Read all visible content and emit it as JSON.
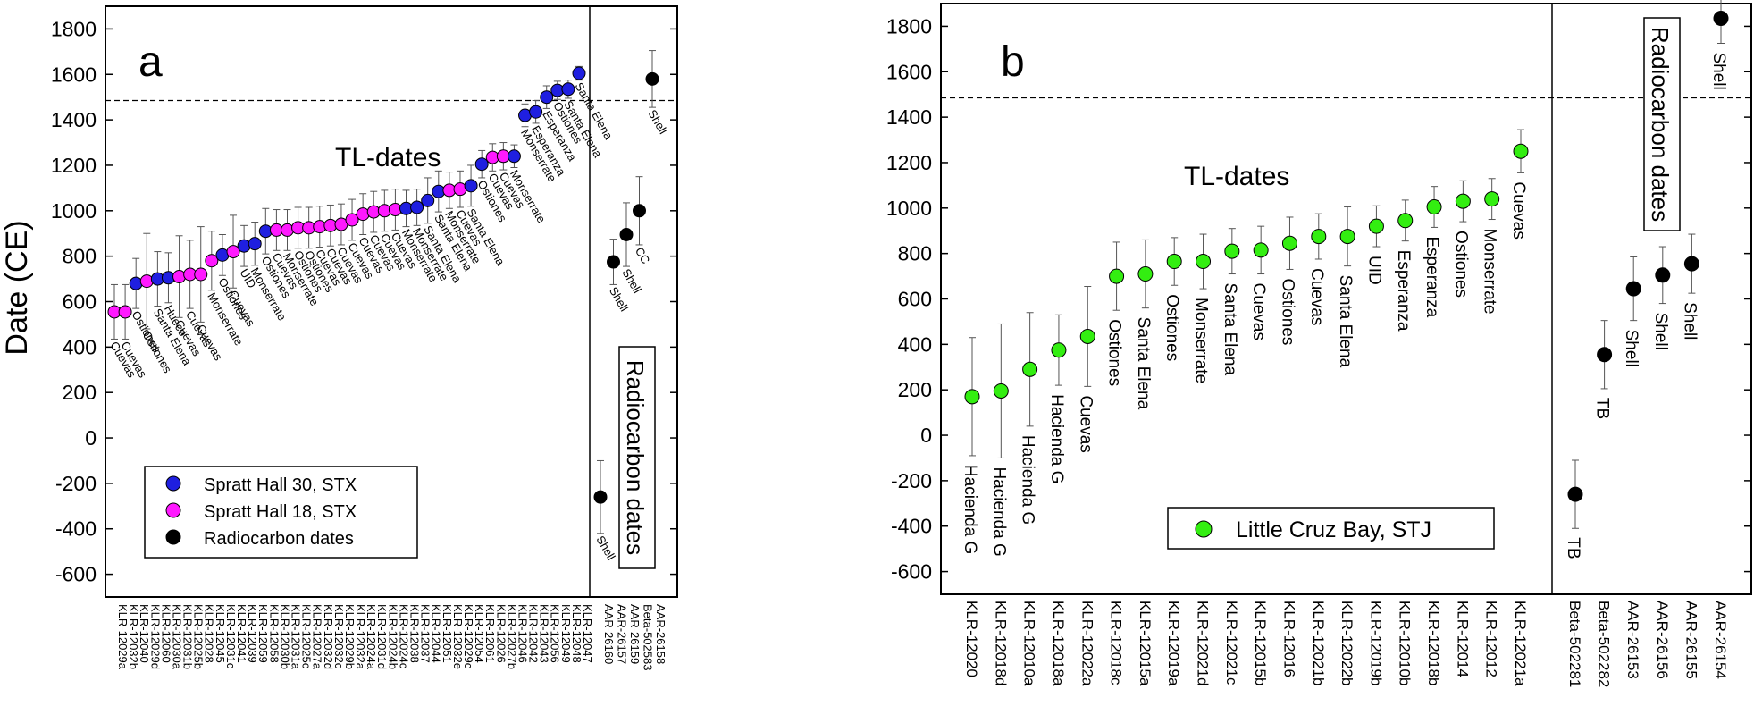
{
  "figure": {
    "ylabel": "Date (CE)",
    "markers": {
      "spratt30": "#1f1fe0",
      "spratt18": "#ff19ff",
      "radiocarbon": "#000000",
      "lcb": "#33ee11"
    },
    "dashed_line_value": 1485
  },
  "chart_data": [
    {
      "type": "scatter",
      "panel_label": "a",
      "title": "",
      "xlabel": "",
      "ylabel": "Date (CE)",
      "ylim": [
        -700,
        1900
      ],
      "yticks": [
        -600,
        -400,
        -200,
        0,
        200,
        400,
        600,
        800,
        1000,
        1200,
        1400,
        1600,
        1800
      ],
      "grid": false,
      "legend_position": "bottom-left",
      "group_labels": [
        "TL-dates",
        "Radiocarbon dates"
      ],
      "series": [
        {
          "name": "Spratt Hall 30, STX",
          "points": [
            {
              "sample": "KLR-12040",
              "site": "Ostiones",
              "y": 680,
              "err": 110
            },
            {
              "sample": "KLR-12060",
              "site": "Santa Elena",
              "y": 700,
              "err": 120
            },
            {
              "sample": "KLR-12030a",
              "site": "Hueco",
              "y": 705,
              "err": 110
            },
            {
              "sample": "KLR-12031c",
              "site": "Ostiones",
              "y": 805,
              "err": 90
            },
            {
              "sample": "KLR-12039",
              "site": "UID",
              "y": 845,
              "err": 90
            },
            {
              "sample": "KLR-12059",
              "site": "Monserrate",
              "y": 855,
              "err": 95
            },
            {
              "sample": "KLR-12058",
              "site": "Ostiones",
              "y": 910,
              "err": 100
            },
            {
              "sample": "KLR-12038",
              "site": "Monserrate",
              "y": 1010,
              "err": 80
            },
            {
              "sample": "KLR-12037",
              "site": "Monserrate",
              "y": 1015,
              "err": 80
            },
            {
              "sample": "KLR-12044",
              "site": "Santa Elena",
              "y": 1045,
              "err": 100
            },
            {
              "sample": "KLR-12051",
              "site": "Santa Elena",
              "y": 1085,
              "err": 90
            },
            {
              "sample": "KLR-12054",
              "site": "Santa Elena",
              "y": 1110,
              "err": 90
            },
            {
              "sample": "KLR-12061",
              "site": "Ostiones",
              "y": 1205,
              "err": 60
            },
            {
              "sample": "KLR-12046",
              "site": "Monserrate",
              "y": 1240,
              "err": 50
            },
            {
              "sample": "KLR-12042",
              "site": "Monserrate",
              "y": 1420,
              "err": 50
            },
            {
              "sample": "KLR-12043",
              "site": "Esperanza",
              "y": 1435,
              "err": 50
            },
            {
              "sample": "KLR-12056",
              "site": "Esperanza",
              "y": 1500,
              "err": 50
            },
            {
              "sample": "KLR-12049",
              "site": "Ostiones",
              "y": 1530,
              "err": 40
            },
            {
              "sample": "KLR-12048",
              "site": "Santa Elena",
              "y": 1535,
              "err": 40
            },
            {
              "sample": "KLR-12047",
              "site": "Santa Elena",
              "y": 1605,
              "err": 30
            }
          ]
        },
        {
          "name": "Spratt Hall 18, STX",
          "points": [
            {
              "sample": "KLR-12029a",
              "site": "Cuevas",
              "y": 555,
              "err": 120
            },
            {
              "sample": "KLR-12032b",
              "site": "Cuevas",
              "y": 555,
              "err": 120
            },
            {
              "sample": "KLR-12029d",
              "site": "Ostiones",
              "y": 690,
              "err": 210
            },
            {
              "sample": "KLR-12031b",
              "site": "Cuevas",
              "y": 710,
              "err": 180
            },
            {
              "sample": "KLR-12025b",
              "site": "Cuevas",
              "y": 720,
              "err": 150
            },
            {
              "sample": "KLR-12028",
              "site": "Cuevas",
              "y": 720,
              "err": 210
            },
            {
              "sample": "KLR-12045",
              "site": "Monserrate",
              "y": 780,
              "err": 130
            },
            {
              "sample": "KLR-12041",
              "site": "Cuevas",
              "y": 820,
              "err": 160
            },
            {
              "sample": "KLR-12030b",
              "site": "Cuevas",
              "y": 915,
              "err": 90
            },
            {
              "sample": "KLR-12031a",
              "site": "Monserrate",
              "y": 915,
              "err": 90
            },
            {
              "sample": "KLR-12025c",
              "site": "Ostiones",
              "y": 925,
              "err": 90
            },
            {
              "sample": "KLR-12027a",
              "site": "Ostiones",
              "y": 925,
              "err": 90
            },
            {
              "sample": "KLR-12032d",
              "site": "Cuevas",
              "y": 930,
              "err": 90
            },
            {
              "sample": "KLR-12032c",
              "site": "Cuevas",
              "y": 935,
              "err": 90
            },
            {
              "sample": "KLR-12029b",
              "site": "Cuevas",
              "y": 940,
              "err": 90
            },
            {
              "sample": "KLR-12032a",
              "site": "Cuevas",
              "y": 960,
              "err": 90
            },
            {
              "sample": "KLR-12024a",
              "site": "Cuevas",
              "y": 985,
              "err": 90
            },
            {
              "sample": "KLR-12031d",
              "site": "Cuevas",
              "y": 995,
              "err": 90
            },
            {
              "sample": "KLR-12024b",
              "site": "Cuevas",
              "y": 1000,
              "err": 90
            },
            {
              "sample": "KLR-12024c",
              "site": "Cuevas",
              "y": 1005,
              "err": 90
            },
            {
              "sample": "KLR-12032e",
              "site": "Monserrate",
              "y": 1090,
              "err": 80
            },
            {
              "sample": "KLR-12029c",
              "site": "Cuevas",
              "y": 1095,
              "err": 80
            },
            {
              "sample": "KLR-12026",
              "site": "Cuevas",
              "y": 1235,
              "err": 60
            },
            {
              "sample": "KLR-12027b",
              "site": "Cuevas",
              "y": 1240,
              "err": 60
            }
          ]
        },
        {
          "name": "Radiocarbon dates",
          "points": [
            {
              "sample": "AAR-26160",
              "site": "Shell",
              "y": -260,
              "err": 160
            },
            {
              "sample": "AAR-26157",
              "site": "Shell",
              "y": 775,
              "err": 100
            },
            {
              "sample": "AAR-26159",
              "site": "Shell",
              "y": 895,
              "err": 140
            },
            {
              "sample": "Beta-502583",
              "site": "CC",
              "y": 1000,
              "err": 150
            },
            {
              "sample": "AAR-26158",
              "site": "Shell",
              "y": 1580,
              "err": 125
            }
          ]
        }
      ],
      "x_order": [
        "KLR-12029a",
        "KLR-12032b",
        "KLR-12040",
        "KLR-12029d",
        "KLR-12060",
        "KLR-12030a",
        "KLR-12031b",
        "KLR-12025b",
        "KLR-12028",
        "KLR-12045",
        "KLR-12031c",
        "KLR-12041",
        "KLR-12039",
        "KLR-12059",
        "KLR-12058",
        "KLR-12030b",
        "KLR-12031a",
        "KLR-12025c",
        "KLR-12027a",
        "KLR-12032d",
        "KLR-12032c",
        "KLR-12029b",
        "KLR-12032a",
        "KLR-12024a",
        "KLR-12031d",
        "KLR-12024b",
        "KLR-12024c",
        "KLR-12038",
        "KLR-12037",
        "KLR-12044",
        "KLR-12051",
        "KLR-12032e",
        "KLR-12029c",
        "KLR-12054",
        "KLR-12061",
        "KLR-12026",
        "KLR-12027b",
        "KLR-12046",
        "KLR-12042",
        "KLR-12043",
        "KLR-12056",
        "KLR-12049",
        "KLR-12048",
        "KLR-12047",
        "AAR-26160",
        "AAR-26157",
        "AAR-26159",
        "Beta-502583",
        "AAR-26158"
      ]
    },
    {
      "type": "scatter",
      "panel_label": "b",
      "title": "",
      "xlabel": "",
      "ylabel": "",
      "ylim": [
        -700,
        1900
      ],
      "yticks": [
        -600,
        -400,
        -200,
        0,
        200,
        400,
        600,
        800,
        1000,
        1200,
        1400,
        1600,
        1800
      ],
      "grid": false,
      "legend_position": "bottom-center",
      "group_labels": [
        "TL-dates",
        "Radiocarbon dates"
      ],
      "series": [
        {
          "name": "Little Cruz Bay, STJ",
          "points": [
            {
              "sample": "KLR-12020",
              "site": "Hacienda G",
              "y": 170,
              "err": 260
            },
            {
              "sample": "KLR-12018d",
              "site": "Hacienda G",
              "y": 195,
              "err": 295
            },
            {
              "sample": "KLR-12010a",
              "site": "Hacienda G",
              "y": 290,
              "err": 250
            },
            {
              "sample": "KLR-12018a",
              "site": "Hacienda G",
              "y": 375,
              "err": 155
            },
            {
              "sample": "KLR-12022a",
              "site": "Cuevas",
              "y": 435,
              "err": 220
            },
            {
              "sample": "KLR-12018c",
              "site": "Ostiones",
              "y": 700,
              "err": 150
            },
            {
              "sample": "KLR-12015a",
              "site": "Santa Elena",
              "y": 710,
              "err": 150
            },
            {
              "sample": "KLR-12019a",
              "site": "Ostiones",
              "y": 765,
              "err": 105
            },
            {
              "sample": "KLR-12021d",
              "site": "Monserrate",
              "y": 765,
              "err": 120
            },
            {
              "sample": "KLR-12021c",
              "site": "Santa Elena",
              "y": 810,
              "err": 100
            },
            {
              "sample": "KLR-12015b",
              "site": "Cuevas",
              "y": 815,
              "err": 105
            },
            {
              "sample": "KLR-12016",
              "site": "Ostiones",
              "y": 845,
              "err": 115
            },
            {
              "sample": "KLR-12021b",
              "site": "Cuevas",
              "y": 875,
              "err": 100
            },
            {
              "sample": "KLR-12022b",
              "site": "Santa Elena",
              "y": 875,
              "err": 130
            },
            {
              "sample": "KLR-12019b",
              "site": "UID",
              "y": 920,
              "err": 90
            },
            {
              "sample": "KLR-12010b",
              "site": "Esperanza",
              "y": 945,
              "err": 90
            },
            {
              "sample": "KLR-12018b",
              "site": "Esperanza",
              "y": 1005,
              "err": 90
            },
            {
              "sample": "KLR-12014",
              "site": "Ostiones",
              "y": 1030,
              "err": 90
            },
            {
              "sample": "KLR-12012",
              "site": "Monserrate",
              "y": 1040,
              "err": 90
            },
            {
              "sample": "KLR-12021a",
              "site": "Cuevas",
              "y": 1250,
              "err": 95
            }
          ]
        },
        {
          "name": "Radiocarbon dates",
          "points": [
            {
              "sample": "Beta-502281",
              "site": "TB",
              "y": -260,
              "err": 150
            },
            {
              "sample": "Beta-502282",
              "site": "TB",
              "y": 355,
              "err": 150
            },
            {
              "sample": "AAR-26153",
              "site": "Shell",
              "y": 645,
              "err": 140
            },
            {
              "sample": "AAR-26156",
              "site": "Shell",
              "y": 705,
              "err": 125
            },
            {
              "sample": "AAR-26155",
              "site": "Shell",
              "y": 755,
              "err": 130
            },
            {
              "sample": "AAR-26154",
              "site": "Shell",
              "y": 1835,
              "err": 110
            }
          ]
        }
      ]
    }
  ]
}
